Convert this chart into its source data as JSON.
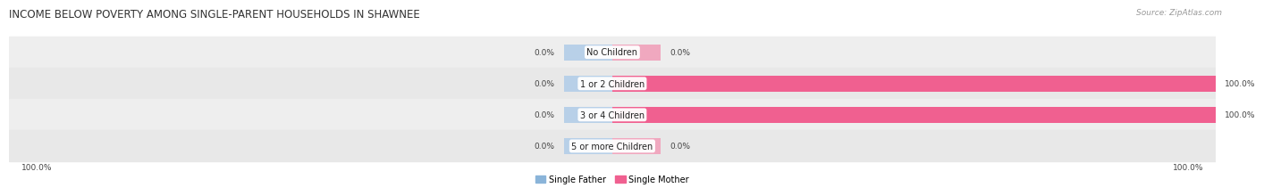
{
  "title": "INCOME BELOW POVERTY AMONG SINGLE-PARENT HOUSEHOLDS IN SHAWNEE",
  "source": "Source: ZipAtlas.com",
  "categories": [
    "No Children",
    "1 or 2 Children",
    "3 or 4 Children",
    "5 or more Children"
  ],
  "single_father": [
    0.0,
    0.0,
    0.0,
    0.0
  ],
  "single_mother": [
    0.0,
    100.0,
    100.0,
    0.0
  ],
  "color_father": "#8ab4d9",
  "color_mother": "#f06090",
  "color_father_light": "#b8d0e8",
  "color_mother_light": "#f0a8bf",
  "title_fontsize": 8.5,
  "source_fontsize": 6.5,
  "label_fontsize": 7.0,
  "tick_fontsize": 6.5,
  "bar_height": 0.52,
  "stub_size": 8.0,
  "row_colors": [
    "#eeeeee",
    "#e6e6e6",
    "#e6e6e6",
    "#eeeeee"
  ],
  "row_sep_color": "#ffffff"
}
